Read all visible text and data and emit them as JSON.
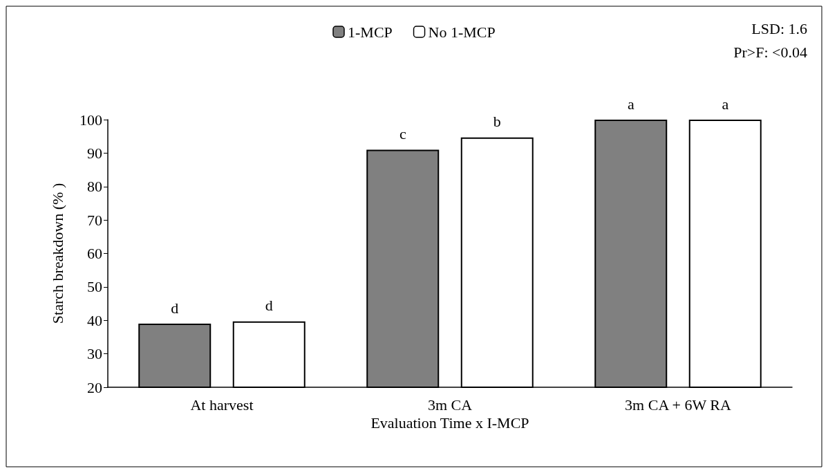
{
  "chart_data": {
    "type": "bar",
    "xlabel": "Evaluation Time x I-MCP",
    "ylabel": "Starch breakdown (% )",
    "categories": [
      "At harvest",
      "3m CA",
      "3m CA + 6W RA"
    ],
    "series": [
      {
        "name": "1-MCP",
        "color": "#808080",
        "values": [
          39.0,
          91.0,
          100
        ],
        "value_labels": [
          "d",
          "c",
          "a"
        ]
      },
      {
        "name": "No 1-MCP",
        "color": "#ffffff",
        "values": [
          39.7,
          94.7,
          100
        ],
        "value_labels": [
          "d",
          "b",
          "a"
        ]
      }
    ],
    "ylim": [
      20,
      100
    ],
    "yticks": [
      20,
      30,
      40,
      50,
      60,
      70,
      80,
      90,
      100
    ],
    "grid": false,
    "legend": "top",
    "annotations": [
      "LSD: 1.6",
      "Pr>F: <0.04"
    ]
  }
}
